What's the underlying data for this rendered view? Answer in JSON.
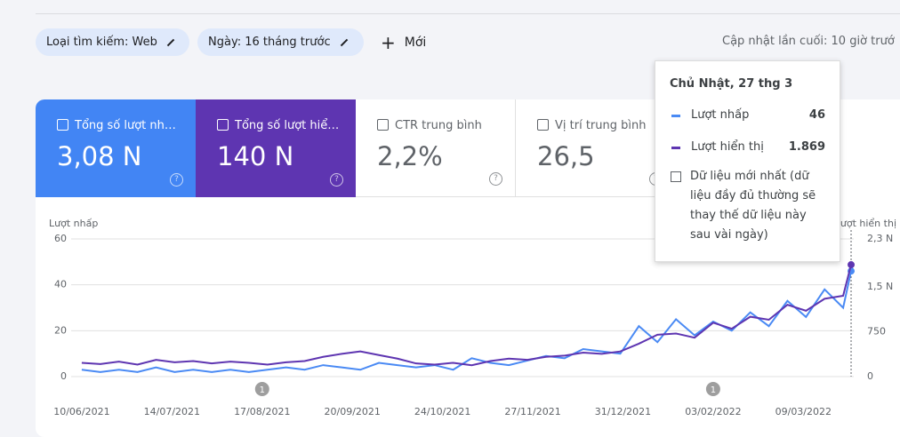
{
  "toolbar": {
    "chips": [
      "Loại tìm kiếm: Web",
      "Ngày: 16 tháng trước"
    ],
    "new_button": "Mới",
    "last_update": "Cập nhật lần cuối: 10 giờ trướ"
  },
  "metrics": [
    {
      "label": "Tổng số lượt nh…",
      "value": "3,08 N"
    },
    {
      "label": "Tổng số lượt hiể…",
      "value": "140 N"
    },
    {
      "label": "CTR trung bình",
      "value": "2,2%"
    },
    {
      "label": "Vị trí trung bình",
      "value": "26,5"
    }
  ],
  "tooltip": {
    "title": "Chủ Nhật, 27 thg 3",
    "values": [
      "46",
      "1.869"
    ],
    "note": "Dữ liệu mới nhất (dữ liệu đầy đủ thường sẽ thay thế dữ liệu này sau vài ngày)"
  },
  "chart_data": {
    "type": "line",
    "y_label": "Lượt nhấp",
    "y2_label": "Lượt hiển thị",
    "x": [
      "10/06/2021",
      "17/06/2021",
      "24/06/2021",
      "01/07/2021",
      "08/07/2021",
      "15/07/2021",
      "22/07/2021",
      "29/07/2021",
      "05/08/2021",
      "12/08/2021",
      "19/08/2021",
      "26/08/2021",
      "02/09/2021",
      "09/09/2021",
      "16/09/2021",
      "23/09/2021",
      "30/09/2021",
      "07/10/2021",
      "14/10/2021",
      "21/10/2021",
      "28/10/2021",
      "04/11/2021",
      "11/11/2021",
      "18/11/2021",
      "25/11/2021",
      "02/12/2021",
      "09/12/2021",
      "16/12/2021",
      "23/12/2021",
      "30/12/2021",
      "06/01/2022",
      "13/01/2022",
      "20/01/2022",
      "27/01/2022",
      "03/02/2022",
      "10/02/2022",
      "17/02/2022",
      "24/02/2022",
      "03/03/2022",
      "10/03/2022",
      "17/03/2022",
      "24/03/2022",
      "27/03/2022"
    ],
    "series": [
      {
        "name": "Lượt nhấp",
        "color": "#4a8af4",
        "values": [
          3,
          2,
          3,
          2,
          4,
          2,
          3,
          2,
          3,
          2,
          3,
          4,
          3,
          5,
          4,
          3,
          6,
          5,
          4,
          5,
          3,
          8,
          6,
          5,
          7,
          9,
          8,
          12,
          11,
          10,
          22,
          15,
          25,
          18,
          24,
          20,
          28,
          22,
          33,
          26,
          38,
          30,
          46
        ]
      },
      {
        "name": "Lượt hiển thị",
        "color": "#5e35b1",
        "axis": "y2",
        "values": [
          230,
          210,
          250,
          200,
          280,
          240,
          260,
          220,
          250,
          230,
          200,
          240,
          260,
          330,
          380,
          420,
          360,
          300,
          220,
          200,
          230,
          190,
          260,
          300,
          280,
          330,
          350,
          400,
          380,
          420,
          550,
          700,
          720,
          650,
          900,
          800,
          1000,
          950,
          1200,
          1100,
          1300,
          1350,
          1869
        ]
      }
    ],
    "xlim": [
      "06/06/2021",
      "28/03/2022"
    ],
    "xticks": [
      "10/06/2021",
      "14/07/2021",
      "17/08/2021",
      "20/09/2021",
      "24/10/2021",
      "27/11/2021",
      "31/12/2021",
      "03/02/2022",
      "09/03/2022"
    ],
    "ylim": [
      0,
      60
    ],
    "yticks": [
      0,
      20,
      40,
      60
    ],
    "y2lim": [
      0,
      2300
    ],
    "y2ticks": [
      0,
      750,
      {
        "value": 1500,
        "label": "1,5 N"
      },
      {
        "value": 2300,
        "label": "2,3 N"
      }
    ],
    "grid": true,
    "annotations": [
      {
        "x": "17/08/2021",
        "label": "1"
      },
      {
        "x": "03/02/2022",
        "label": "1"
      }
    ]
  }
}
